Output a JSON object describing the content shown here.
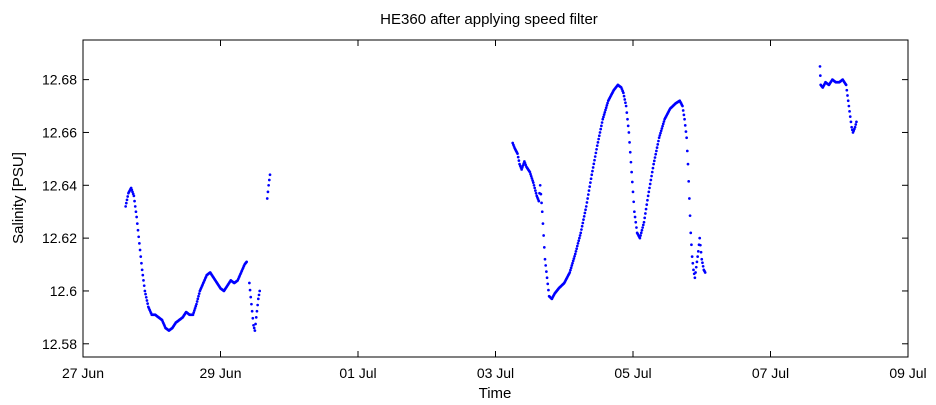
{
  "chart_data": {
    "type": "scatter",
    "title": "HE360 after applying speed filter",
    "xlabel": "Time",
    "ylabel": "Salinity [PSU]",
    "xlim": [
      "27 Jun",
      "09 Jul"
    ],
    "ylim": [
      12.575,
      12.695
    ],
    "x_tick_labels": [
      "27 Jun",
      "29 Jun",
      "01 Jul",
      "03 Jul",
      "05 Jul",
      "07 Jul",
      "09 Jul"
    ],
    "y_tick_labels": [
      "12.58",
      "12.6",
      "12.62",
      "12.64",
      "12.66",
      "12.68"
    ],
    "grid": false,
    "marker_color": "#0000ff",
    "series": [
      {
        "x_unit": "days after 27 Jun 00:00",
        "segments": [
          [
            [
              0.62,
              12.632
            ],
            [
              0.66,
              12.637
            ],
            [
              0.7,
              12.639
            ],
            [
              0.74,
              12.636
            ],
            [
              0.78,
              12.628
            ],
            [
              0.82,
              12.618
            ],
            [
              0.86,
              12.608
            ],
            [
              0.9,
              12.6
            ],
            [
              0.95,
              12.594
            ],
            [
              1.0,
              12.591
            ],
            [
              1.05,
              12.591
            ],
            [
              1.1,
              12.59
            ],
            [
              1.15,
              12.589
            ],
            [
              1.2,
              12.586
            ],
            [
              1.25,
              12.585
            ],
            [
              1.3,
              12.586
            ],
            [
              1.35,
              12.588
            ],
            [
              1.4,
              12.589
            ],
            [
              1.45,
              12.59
            ],
            [
              1.5,
              12.592
            ],
            [
              1.55,
              12.591
            ],
            [
              1.6,
              12.591
            ],
            [
              1.65,
              12.595
            ],
            [
              1.7,
              12.6
            ],
            [
              1.75,
              12.603
            ],
            [
              1.8,
              12.606
            ],
            [
              1.85,
              12.607
            ],
            [
              1.9,
              12.605
            ],
            [
              1.95,
              12.603
            ],
            [
              2.0,
              12.601
            ],
            [
              2.05,
              12.6
            ],
            [
              2.1,
              12.602
            ],
            [
              2.15,
              12.604
            ],
            [
              2.2,
              12.603
            ],
            [
              2.25,
              12.604
            ],
            [
              2.3,
              12.607
            ],
            [
              2.35,
              12.61
            ],
            [
              2.38,
              12.611
            ]
          ],
          [
            [
              2.42,
              12.603
            ],
            [
              2.45,
              12.595
            ],
            [
              2.48,
              12.587
            ],
            [
              2.5,
              12.585
            ],
            [
              2.52,
              12.59
            ],
            [
              2.55,
              12.597
            ],
            [
              2.57,
              12.6
            ]
          ],
          [
            [
              2.68,
              12.635
            ],
            [
              2.7,
              12.64
            ],
            [
              2.72,
              12.644
            ]
          ],
          [
            [
              6.25,
              12.656
            ],
            [
              6.28,
              12.654
            ],
            [
              6.32,
              12.652
            ],
            [
              6.35,
              12.648
            ],
            [
              6.38,
              12.646
            ],
            [
              6.42,
              12.649
            ],
            [
              6.45,
              12.647
            ],
            [
              6.5,
              12.645
            ],
            [
              6.55,
              12.641
            ],
            [
              6.6,
              12.636
            ],
            [
              6.63,
              12.634
            ],
            [
              6.65,
              12.64
            ],
            [
              6.68,
              12.63
            ],
            [
              6.72,
              12.612
            ],
            [
              6.75,
              12.605
            ],
            [
              6.78,
              12.598
            ],
            [
              6.82,
              12.597
            ],
            [
              6.86,
              12.599
            ],
            [
              6.92,
              12.601
            ],
            [
              7.0,
              12.603
            ],
            [
              7.08,
              12.607
            ],
            [
              7.16,
              12.614
            ],
            [
              7.24,
              12.622
            ],
            [
              7.32,
              12.632
            ],
            [
              7.4,
              12.644
            ],
            [
              7.48,
              12.655
            ],
            [
              7.56,
              12.665
            ],
            [
              7.64,
              12.672
            ],
            [
              7.72,
              12.676
            ],
            [
              7.78,
              12.678
            ],
            [
              7.83,
              12.677
            ],
            [
              7.86,
              12.675
            ],
            [
              7.9,
              12.67
            ],
            [
              7.94,
              12.66
            ],
            [
              7.98,
              12.645
            ],
            [
              8.02,
              12.63
            ],
            [
              8.06,
              12.622
            ],
            [
              8.1,
              12.62
            ],
            [
              8.16,
              12.626
            ],
            [
              8.22,
              12.636
            ],
            [
              8.3,
              12.648
            ],
            [
              8.38,
              12.658
            ],
            [
              8.46,
              12.665
            ],
            [
              8.54,
              12.669
            ],
            [
              8.62,
              12.671
            ],
            [
              8.68,
              12.672
            ],
            [
              8.72,
              12.67
            ],
            [
              8.75,
              12.665
            ],
            [
              8.78,
              12.658
            ],
            [
              8.8,
              12.648
            ],
            [
              8.82,
              12.635
            ],
            [
              8.84,
              12.622
            ],
            [
              8.86,
              12.613
            ],
            [
              8.88,
              12.608
            ],
            [
              8.9,
              12.605
            ],
            [
              8.92,
              12.609
            ],
            [
              8.95,
              12.615
            ],
            [
              8.97,
              12.62
            ],
            [
              9.0,
              12.612
            ],
            [
              9.03,
              12.608
            ],
            [
              9.05,
              12.607
            ]
          ],
          [
            [
              10.72,
              12.685
            ],
            [
              10.73,
              12.678
            ],
            [
              10.76,
              12.677
            ],
            [
              10.8,
              12.679
            ],
            [
              10.85,
              12.678
            ],
            [
              10.9,
              12.68
            ],
            [
              10.95,
              12.679
            ],
            [
              11.0,
              12.679
            ],
            [
              11.05,
              12.68
            ],
            [
              11.1,
              12.678
            ],
            [
              11.12,
              12.674
            ],
            [
              11.15,
              12.668
            ],
            [
              11.18,
              12.662
            ],
            [
              11.2,
              12.66
            ],
            [
              11.23,
              12.662
            ],
            [
              11.25,
              12.664
            ]
          ]
        ]
      }
    ]
  }
}
